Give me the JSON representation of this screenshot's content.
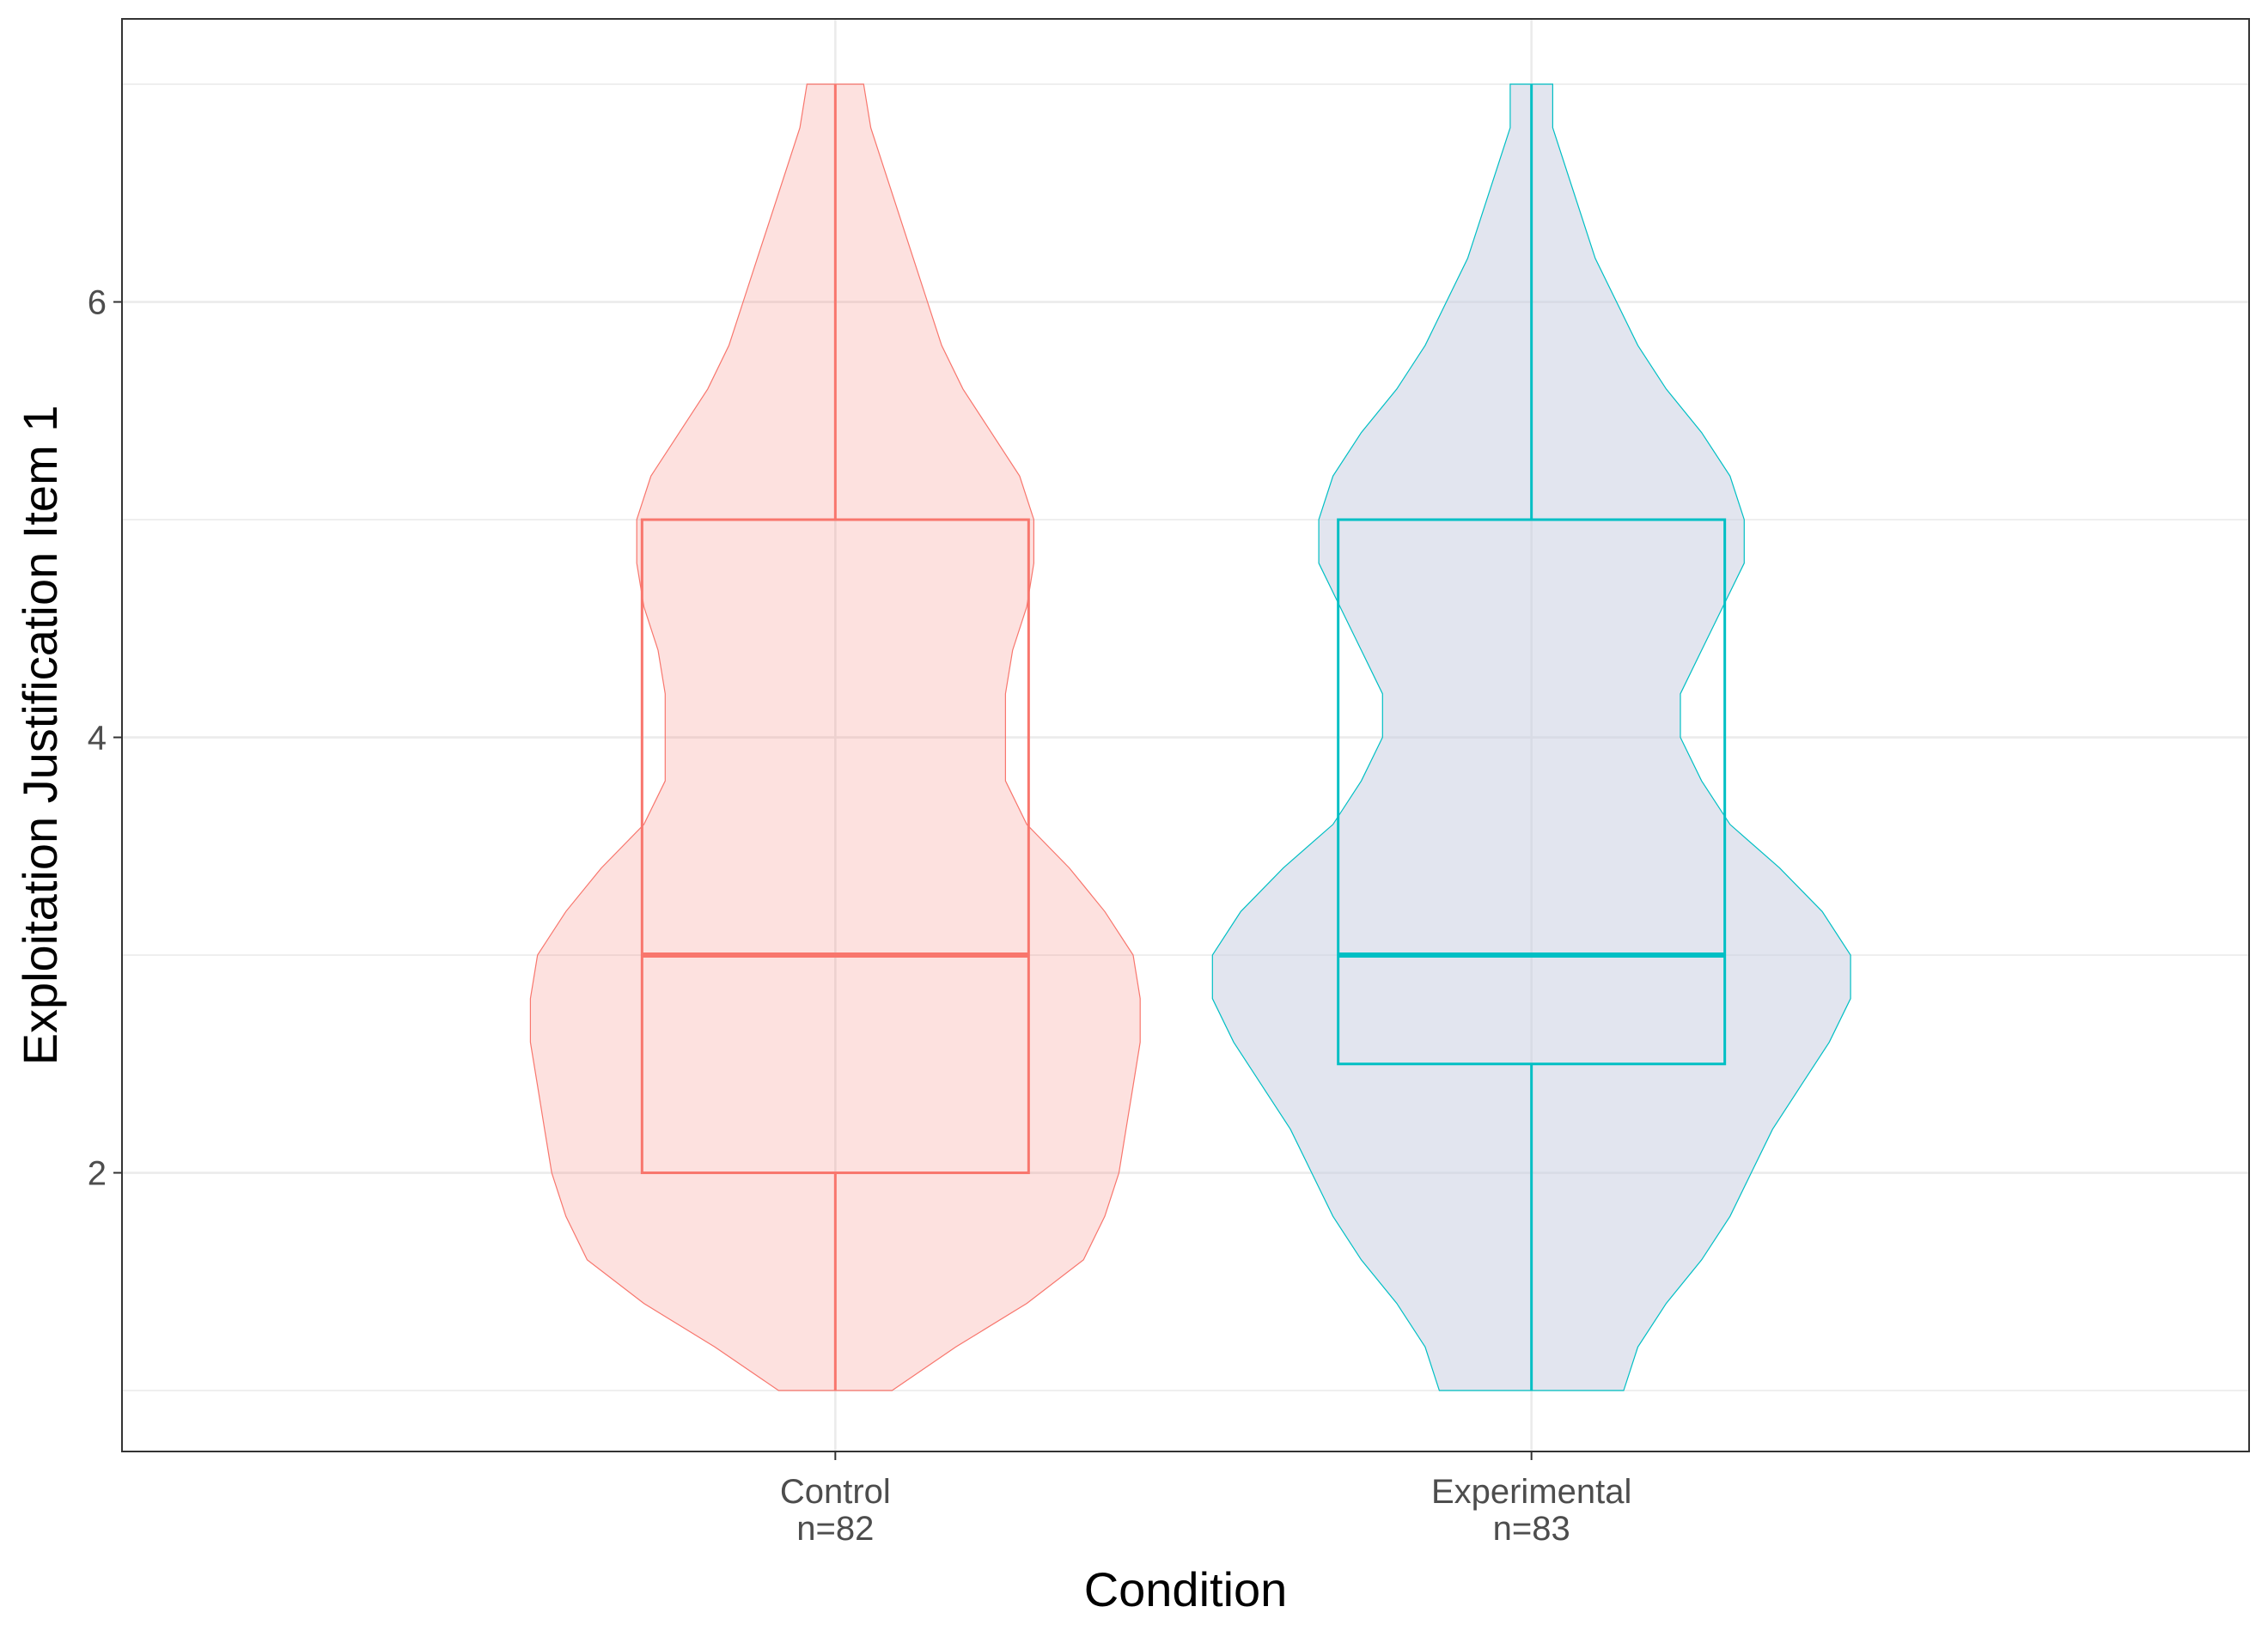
{
  "chart_data": {
    "type": "violin",
    "xlabel": "Condition",
    "ylabel": "Exploitation Justification Item 1",
    "ylim": [
      0.72,
      7.3
    ],
    "yticks": [
      2,
      4,
      6
    ],
    "grid": true,
    "groups": [
      {
        "name": "Control",
        "n_label": "n=82",
        "color": "#F8766D",
        "fill": "#F8766D",
        "box": {
          "q1": 2,
          "median": 3,
          "q3": 5,
          "whisker_low": 1,
          "whisker_high": 7
        },
        "violin_halfwidth_profile": [
          [
            1.0,
            0.08
          ],
          [
            1.2,
            0.17
          ],
          [
            1.4,
            0.27
          ],
          [
            1.6,
            0.35
          ],
          [
            1.8,
            0.38
          ],
          [
            2.0,
            0.4
          ],
          [
            2.2,
            0.41
          ],
          [
            2.4,
            0.42
          ],
          [
            2.6,
            0.43
          ],
          [
            2.8,
            0.43
          ],
          [
            3.0,
            0.42
          ],
          [
            3.2,
            0.38
          ],
          [
            3.4,
            0.33
          ],
          [
            3.6,
            0.27
          ],
          [
            3.8,
            0.24
          ],
          [
            4.0,
            0.24
          ],
          [
            4.2,
            0.24
          ],
          [
            4.4,
            0.25
          ],
          [
            4.6,
            0.27
          ],
          [
            4.8,
            0.28
          ],
          [
            5.0,
            0.28
          ],
          [
            5.2,
            0.26
          ],
          [
            5.4,
            0.22
          ],
          [
            5.6,
            0.18
          ],
          [
            5.8,
            0.15
          ],
          [
            6.0,
            0.13
          ],
          [
            6.2,
            0.11
          ],
          [
            6.4,
            0.09
          ],
          [
            6.6,
            0.07
          ],
          [
            6.8,
            0.05
          ],
          [
            7.0,
            0.04
          ]
        ]
      },
      {
        "name": "Experimental",
        "n_label": "n=83",
        "color": "#00BFC4",
        "fill": "#C5CBE0",
        "box": {
          "q1": 2.5,
          "median": 3,
          "q3": 5,
          "whisker_low": 1,
          "whisker_high": 7
        },
        "violin_halfwidth_profile": [
          [
            1.0,
            0.13
          ],
          [
            1.2,
            0.15
          ],
          [
            1.4,
            0.19
          ],
          [
            1.6,
            0.24
          ],
          [
            1.8,
            0.28
          ],
          [
            2.0,
            0.31
          ],
          [
            2.2,
            0.34
          ],
          [
            2.4,
            0.38
          ],
          [
            2.6,
            0.42
          ],
          [
            2.8,
            0.45
          ],
          [
            3.0,
            0.45
          ],
          [
            3.2,
            0.41
          ],
          [
            3.4,
            0.35
          ],
          [
            3.6,
            0.28
          ],
          [
            3.8,
            0.24
          ],
          [
            4.0,
            0.21
          ],
          [
            4.2,
            0.21
          ],
          [
            4.4,
            0.24
          ],
          [
            4.6,
            0.27
          ],
          [
            4.8,
            0.3
          ],
          [
            5.0,
            0.3
          ],
          [
            5.2,
            0.28
          ],
          [
            5.4,
            0.24
          ],
          [
            5.6,
            0.19
          ],
          [
            5.8,
            0.15
          ],
          [
            6.0,
            0.12
          ],
          [
            6.2,
            0.09
          ],
          [
            6.4,
            0.07
          ],
          [
            6.6,
            0.05
          ],
          [
            6.8,
            0.03
          ],
          [
            7.0,
            0.03
          ]
        ]
      }
    ]
  }
}
